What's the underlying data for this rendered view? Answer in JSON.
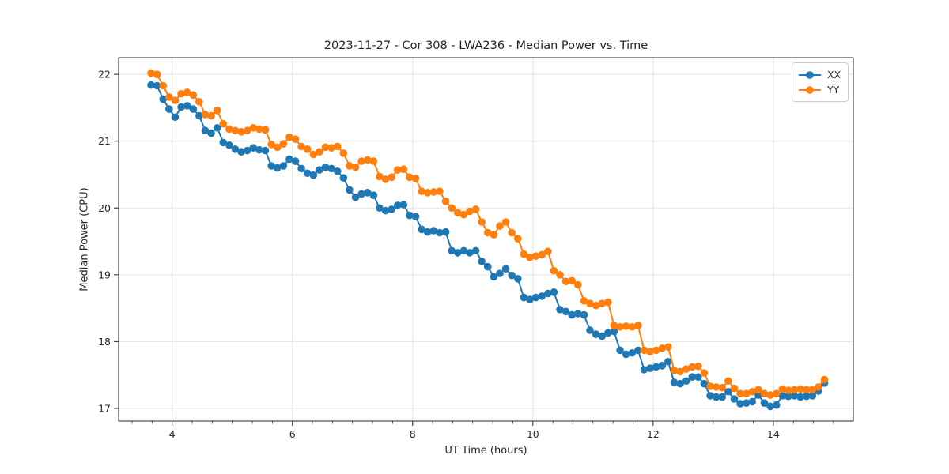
{
  "chart_data": {
    "type": "line",
    "title": "2023-11-27 - Cor 308 - LWA236 - Median Power vs. Time",
    "xlabel": "UT Time (hours)",
    "ylabel": "Median Power (CPU)",
    "xlim": [
      3.11,
      15.33
    ],
    "ylim": [
      16.81,
      22.25
    ],
    "xticks": [
      4,
      6,
      8,
      10,
      12,
      14
    ],
    "yticks": [
      17,
      18,
      19,
      20,
      21,
      22
    ],
    "x_minor_tick_step": 0.33333,
    "grid": true,
    "grid_color": "#e5e5e5",
    "legend_position": "upper right",
    "marker": "circle",
    "x": [
      3.65,
      3.75,
      3.85,
      3.95,
      4.05,
      4.15,
      4.25,
      4.35,
      4.45,
      4.55,
      4.65,
      4.75,
      4.85,
      4.95,
      5.05,
      5.15,
      5.25,
      5.35,
      5.45,
      5.55,
      5.65,
      5.75,
      5.85,
      5.95,
      6.05,
      6.15,
      6.25,
      6.35,
      6.45,
      6.55,
      6.65,
      6.75,
      6.85,
      6.95,
      7.05,
      7.15,
      7.25,
      7.35,
      7.45,
      7.55,
      7.65,
      7.75,
      7.85,
      7.95,
      8.05,
      8.15,
      8.25,
      8.35,
      8.45,
      8.55,
      8.65,
      8.75,
      8.85,
      8.95,
      9.05,
      9.15,
      9.25,
      9.35,
      9.45,
      9.55,
      9.65,
      9.75,
      9.85,
      9.95,
      10.05,
      10.15,
      10.25,
      10.35,
      10.45,
      10.55,
      10.65,
      10.75,
      10.85,
      10.95,
      11.05,
      11.15,
      11.25,
      11.35,
      11.45,
      11.55,
      11.65,
      11.75,
      11.85,
      11.95,
      12.05,
      12.15,
      12.25,
      12.35,
      12.45,
      12.55,
      12.65,
      12.75,
      12.85,
      12.95,
      13.05,
      13.15,
      13.25,
      13.35,
      13.45,
      13.55,
      13.65,
      13.75,
      13.85,
      13.95,
      14.05,
      14.15,
      14.25,
      14.35,
      14.45,
      14.55,
      14.65,
      14.75,
      14.85
    ],
    "series": [
      {
        "name": "XX",
        "color": "#1f77b4",
        "values": [
          21.84,
          21.83,
          21.63,
          21.48,
          21.36,
          21.51,
          21.53,
          21.48,
          21.38,
          21.16,
          21.12,
          21.2,
          20.98,
          20.94,
          20.88,
          20.84,
          20.86,
          20.9,
          20.87,
          20.86,
          20.63,
          20.6,
          20.63,
          20.73,
          20.7,
          20.59,
          20.52,
          20.49,
          20.57,
          20.61,
          20.59,
          20.55,
          20.45,
          20.27,
          20.16,
          20.21,
          20.23,
          20.19,
          20.0,
          19.96,
          19.98,
          20.04,
          20.05,
          19.89,
          19.87,
          19.68,
          19.64,
          19.66,
          19.63,
          19.64,
          19.36,
          19.33,
          19.36,
          19.33,
          19.36,
          19.2,
          19.12,
          18.97,
          19.02,
          19.09,
          18.99,
          18.94,
          18.66,
          18.63,
          18.66,
          18.68,
          18.72,
          18.74,
          18.48,
          18.45,
          18.4,
          18.42,
          18.4,
          18.17,
          18.11,
          18.08,
          18.13,
          18.15,
          17.87,
          17.81,
          17.83,
          17.87,
          17.58,
          17.6,
          17.62,
          17.64,
          17.7,
          17.39,
          17.37,
          17.41,
          17.47,
          17.47,
          17.37,
          17.19,
          17.17,
          17.17,
          17.25,
          17.14,
          17.07,
          17.08,
          17.1,
          17.2,
          17.08,
          17.03,
          17.05,
          17.19,
          17.18,
          17.19,
          17.17,
          17.18,
          17.19,
          17.26,
          17.38
        ]
      },
      {
        "name": "YY",
        "color": "#ff7f0e",
        "values": [
          22.02,
          22.0,
          21.83,
          21.66,
          21.61,
          21.71,
          21.73,
          21.69,
          21.59,
          21.4,
          21.38,
          21.46,
          21.26,
          21.18,
          21.16,
          21.14,
          21.16,
          21.2,
          21.18,
          21.17,
          20.95,
          20.91,
          20.96,
          21.06,
          21.03,
          20.92,
          20.88,
          20.8,
          20.84,
          20.91,
          20.9,
          20.92,
          20.82,
          20.63,
          20.61,
          20.7,
          20.72,
          20.7,
          20.47,
          20.43,
          20.46,
          20.57,
          20.58,
          20.46,
          20.44,
          20.25,
          20.23,
          20.24,
          20.25,
          20.1,
          20.0,
          19.93,
          19.9,
          19.95,
          19.98,
          19.79,
          19.63,
          19.6,
          19.73,
          19.79,
          19.63,
          19.54,
          19.31,
          19.26,
          19.28,
          19.3,
          19.35,
          19.06,
          19.0,
          18.9,
          18.91,
          18.85,
          18.61,
          18.57,
          18.54,
          18.57,
          18.59,
          18.24,
          18.22,
          18.23,
          18.22,
          18.24,
          17.87,
          17.85,
          17.87,
          17.9,
          17.92,
          17.57,
          17.55,
          17.59,
          17.62,
          17.63,
          17.53,
          17.33,
          17.32,
          17.31,
          17.41,
          17.3,
          17.22,
          17.22,
          17.25,
          17.28,
          17.22,
          17.2,
          17.22,
          17.29,
          17.27,
          17.28,
          17.29,
          17.28,
          17.28,
          17.32,
          17.43
        ]
      }
    ]
  },
  "style": {
    "spine_color": "#262626",
    "tick_label_color": "#262626",
    "background": "#ffffff"
  }
}
